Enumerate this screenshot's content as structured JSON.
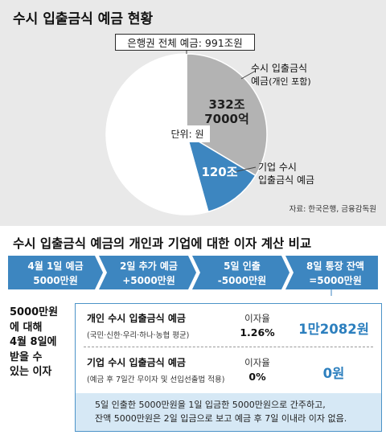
{
  "top": {
    "title": "수시 입출금식 예금 현황",
    "total_label": "은행권 전체 예금: 991조원",
    "unit_label": "단위: 원",
    "source": "자료: 한국은행, 금융감독원"
  },
  "chart_data": {
    "type": "pie",
    "title": "수시 입출금식 예금 현황",
    "total_label": "은행권 전체 예금: 991조원",
    "unit": "원",
    "slices": [
      {
        "name": "수시 입출금식 예금(개인 포함)",
        "value_label": "332조 7000억",
        "value": 332.7,
        "color": "#b3b3b3"
      },
      {
        "name": "기업 수시 입출금식 예금",
        "value_label": "120조",
        "value": 120,
        "color": "#3d86c0"
      },
      {
        "name": "",
        "value": 538.3,
        "color": "#ffffff"
      }
    ],
    "labels": {
      "personal_name_line1": "수시 입출금식",
      "personal_name_line2": "예금",
      "personal_name_suffix": "(개인 포함)",
      "personal_value_line1": "332조",
      "personal_value_line2": "7000억",
      "corp_name_line1": "기업 수시",
      "corp_name_line2": "입출금식 예금",
      "corp_value": "120조"
    }
  },
  "compare": {
    "title": "수시 입출금식 예금의 개인과 기업에 대한 이자 계산 비교",
    "steps": [
      {
        "line1": "4월 1일  예금",
        "line2": "5000만원"
      },
      {
        "line1": "2일  추가 예금",
        "line2": "+5000만원"
      },
      {
        "line1": "5일  인출",
        "line2": "-5000만원"
      },
      {
        "line1": "8일  통장 잔액",
        "line2": "=5000만원"
      }
    ],
    "side_lines": [
      "5000만원",
      "에 대해",
      "4월 8일에",
      "받을 수",
      "있는 이자"
    ],
    "rows": [
      {
        "title": "개인 수시 입출금식 예금",
        "sub": "(국민·신한·우리·하나·농협 평균)",
        "rate_label": "이자율",
        "rate": "1.26%",
        "interest": "1만2082원"
      },
      {
        "title": "기업 수시 입출금식 예금",
        "sub": "(예금 후 7일간 무이자 및 선입선출법 적용)",
        "rate_label": "이자율",
        "rate": "0%",
        "interest": "0원"
      }
    ],
    "note_line1": "5일 인출한 5000만원을 1일 입금한 5000만원으로 간주하고,",
    "note_line2": "잔액 5000만원은 2일 입금으로 보고 예금 후 7일 이내라 이자 없음."
  },
  "colors": {
    "blue": "#3d86c0",
    "blue_light": "#d6e8f5",
    "gray_slice": "#b3b3b3",
    "panel_bg": "#e9e9e9",
    "interest_text": "#2c7fbe"
  }
}
